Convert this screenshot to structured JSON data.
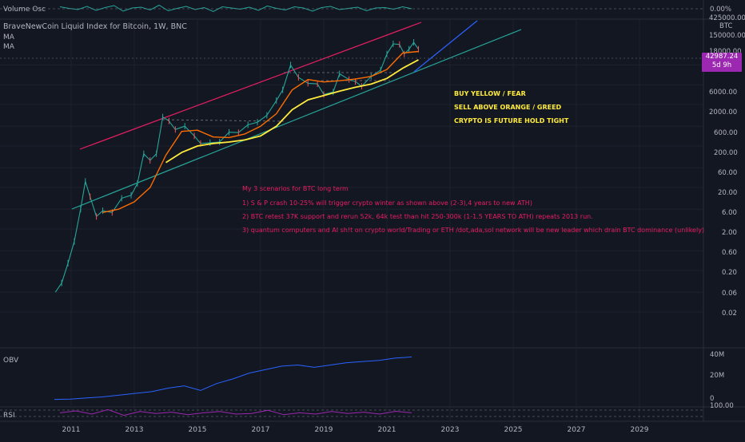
{
  "header": {
    "volume_osc_label": "Volume Osc",
    "symbol_title": "BraveNewCoin Liquid Index for Bitcoin, 1W, BNC",
    "ma_label_1": "MA",
    "ma_label_2": "MA",
    "obv_label": "OBV",
    "rsi_label": "RSI"
  },
  "price_badge": {
    "price": "42987.24",
    "countdown": "5d 9h"
  },
  "annotations": {
    "buy_yellow": "BUY YELLOW  /  FEAR",
    "sell_orange": "SELL ABOVE ORANGE / GREED",
    "hold": "CRYPTO IS FUTURE HOLD TIGHT",
    "scenario_title": "My 3 scenarios for BTC long term",
    "scenario_1": "1)  S & P crash 10-25% will trigger crypto winter as shown above (2-3),4 years to new ATH)",
    "scenario_2": "2) BTC retest 37K support and rerun 52k, 64k test than hit 250-300k  (1-1.5 YEARS TO ATH) repeats 2013 run.",
    "scenario_3": "3) quantum computers and AI sh!t on crypto world/Trading or ETH /dot,ada,sol network will be new leader which drain BTC dominance (unlikely)"
  },
  "colors": {
    "background": "#131722",
    "channel_top": "#e91e63",
    "channel_bottom": "#26a69a",
    "projection": "#2962ff",
    "ma_orange": "#ff6d00",
    "ma_yellow": "#ffeb3b",
    "obv": "#2962ff",
    "rsi": "#9c27b0",
    "scenario_text": "#e91e63",
    "candle_up": "#26a69a",
    "candle_down": "#ef5350"
  },
  "chart_data": [
    {
      "type": "line",
      "pane": "volume-osc",
      "series": [
        {
          "values": [
            0.5,
            0.1,
            -0.2,
            0.6,
            -0.4,
            0.3,
            0.8,
            -0.6,
            0.2,
            0.4,
            -0.3,
            0.9,
            -0.5,
            0.1,
            0.6,
            -0.2,
            0.3,
            -0.7,
            0.5,
            0.2,
            -0.1,
            0.4,
            -0.4,
            0.7,
            0.1,
            -0.3,
            0.5,
            0.2,
            -0.6,
            0.3,
            0.6,
            -0.2,
            0.1,
            0.4,
            -0.5,
            0.2,
            0.3,
            -0.1,
            0.5,
            0.0
          ]
        }
      ],
      "y_axis_labels": [
        "0.00%"
      ]
    },
    {
      "type": "line",
      "pane": "price",
      "log_scale": true,
      "x_ticks": [
        "2011",
        "2013",
        "2015",
        "2017",
        "2019",
        "2021",
        "2023",
        "2025",
        "2027",
        "2029"
      ],
      "y_ticks": [
        "425000.00",
        "150000.00",
        "18000.00",
        "6000.00",
        "2000.00",
        "600.00",
        "200.00",
        "60.00",
        "20.00",
        "6.00",
        "2.00",
        "0.60",
        "0.20",
        "0.06",
        "0.02"
      ],
      "y_unit": "BTC",
      "series": [
        {
          "x": [
            2010.5,
            2010.7,
            2010.9,
            2011.1,
            2011.3,
            2011.45,
            2011.6,
            2011.8,
            2012.0,
            2012.3,
            2012.6,
            2012.9,
            2013.1,
            2013.3,
            2013.5,
            2013.7,
            2013.9,
            2014.1,
            2014.3,
            2014.6,
            2014.9,
            2015.1,
            2015.4,
            2015.7,
            2016.0,
            2016.3,
            2016.6,
            2016.9,
            2017.2,
            2017.5,
            2017.7,
            2017.95,
            2018.2,
            2018.5,
            2018.8,
            2019.0,
            2019.3,
            2019.5,
            2019.8,
            2020.0,
            2020.2,
            2020.5,
            2020.8,
            2021.0,
            2021.2,
            2021.4,
            2021.55,
            2021.7,
            2021.85,
            2022.0
          ],
          "values": [
            0.06,
            0.1,
            0.3,
            1.0,
            6.0,
            28,
            12,
            4.0,
            5.5,
            5.0,
            11,
            13,
            25,
            130,
            90,
            130,
            1000,
            800,
            500,
            600,
            350,
            230,
            240,
            250,
            430,
            420,
            650,
            750,
            1100,
            2500,
            4500,
            18000,
            9000,
            6500,
            6300,
            3500,
            4000,
            11000,
            8000,
            7200,
            5500,
            9500,
            13500,
            33000,
            58000,
            56000,
            33000,
            43000,
            63000,
            42987
          ]
        },
        {
          "name": "MA",
          "x": [
            2012.0,
            2012.5,
            2013.0,
            2013.5,
            2014.0,
            2014.5,
            2015.0,
            2015.5,
            2016.0,
            2016.5,
            2017.0,
            2017.5,
            2018.0,
            2018.5,
            2019.0,
            2019.5,
            2020.0,
            2020.5,
            2021.0,
            2021.5,
            2022.0
          ],
          "values": [
            5,
            6,
            9,
            20,
            120,
            450,
            480,
            330,
            320,
            390,
            600,
            1200,
            4500,
            8000,
            7000,
            7500,
            8200,
            9500,
            14000,
            35000,
            38000
          ]
        },
        {
          "name": "MA",
          "x": [
            2014.0,
            2014.5,
            2015.0,
            2015.5,
            2016.0,
            2016.5,
            2017.0,
            2017.5,
            2018.0,
            2018.5,
            2019.0,
            2019.5,
            2020.0,
            2020.5,
            2021.0,
            2021.5,
            2022.0
          ],
          "values": [
            80,
            140,
            200,
            230,
            250,
            280,
            350,
            600,
            1500,
            2600,
            3300,
            4200,
            5200,
            6200,
            8500,
            15000,
            24000
          ]
        }
      ]
    },
    {
      "type": "line",
      "pane": "obv",
      "y_ticks": [
        "40M",
        "20M",
        "0"
      ],
      "series": [
        {
          "values": [
            0.3,
            0.5,
            1.5,
            2.5,
            4.0,
            5.5,
            7.0,
            10.0,
            12.0,
            8.0,
            14.0,
            18.0,
            23.0,
            26.0,
            29.0,
            30.0,
            28.0,
            30.0,
            32.0,
            33.0,
            34.0,
            36.0,
            37.0
          ]
        }
      ]
    },
    {
      "type": "line",
      "pane": "rsi",
      "y_ticks": [
        "100.00"
      ],
      "series": [
        {
          "values": [
            60,
            75,
            50,
            85,
            40,
            70,
            55,
            65,
            45,
            60,
            70,
            50,
            55,
            80,
            45,
            60,
            50,
            70,
            55,
            65,
            50,
            72,
            60
          ]
        }
      ]
    }
  ]
}
